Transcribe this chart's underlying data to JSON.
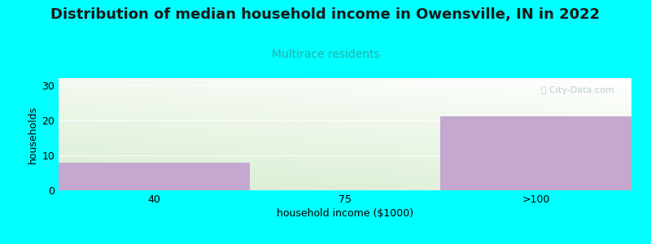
{
  "title": "Distribution of median household income in Owensville, IN in 2022",
  "subtitle": "Multirace residents",
  "xlabel": "household income ($1000)",
  "ylabel": "households",
  "categories": [
    "40",
    "75",
    ">100"
  ],
  "values": [
    8,
    0,
    21
  ],
  "bar_color": "#C4A8D0",
  "background_color": "#00FFFF",
  "plot_bg_color_top_right": "#FFFFFF",
  "plot_bg_color_bottom_left": "#D8EDD0",
  "ylim": [
    0,
    32
  ],
  "yticks": [
    0,
    10,
    20,
    30
  ],
  "title_fontsize": 13,
  "subtitle_fontsize": 10,
  "subtitle_color": "#2AACAC",
  "axis_label_fontsize": 9,
  "tick_fontsize": 9,
  "watermark_text": "ⓘ City-Data.com",
  "watermark_color": "#B0C8C8"
}
